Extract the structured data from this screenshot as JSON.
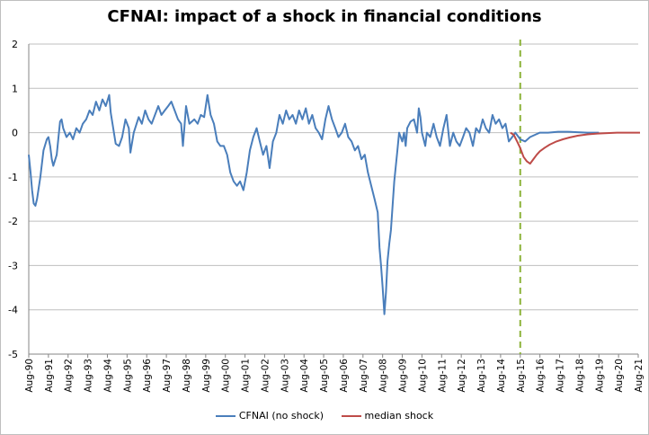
{
  "chart_data": {
    "type": "line",
    "title": "CFNAI: impact of a shock in financial conditions",
    "xlabel": "",
    "ylabel": "",
    "ylim": [
      -5,
      2
    ],
    "yticks": [
      2,
      1,
      0,
      -1,
      -2,
      -3,
      -4,
      -5
    ],
    "xticks": [
      "Aug-90",
      "Aug-91",
      "Aug-92",
      "Aug-93",
      "Aug-94",
      "Aug-95",
      "Aug-96",
      "Aug-97",
      "Aug-98",
      "Aug-99",
      "Aug-00",
      "Aug-01",
      "Aug-02",
      "Aug-03",
      "Aug-04",
      "Aug-05",
      "Aug-06",
      "Aug-07",
      "Aug-08",
      "Aug-09",
      "Aug-10",
      "Aug-11",
      "Aug-12",
      "Aug-13",
      "Aug-14",
      "Aug-15",
      "Aug-16",
      "Aug-17",
      "Aug-18",
      "Aug-19",
      "Aug-20",
      "Aug-21"
    ],
    "grid": "horizontal",
    "legend_position": "bottom",
    "vertical_marker": {
      "x": "Aug-15",
      "style": "dashed",
      "color": "#8db33a"
    },
    "series": [
      {
        "name": "CFNAI (no shock)",
        "color": "#4a7ebb",
        "points": [
          [
            1990.58,
            -0.5
          ],
          [
            1990.67,
            -0.9
          ],
          [
            1990.75,
            -1.3
          ],
          [
            1990.83,
            -1.6
          ],
          [
            1990.92,
            -1.65
          ],
          [
            1991.0,
            -1.5
          ],
          [
            1991.17,
            -1.0
          ],
          [
            1991.33,
            -0.4
          ],
          [
            1991.5,
            -0.15
          ],
          [
            1991.58,
            -0.1
          ],
          [
            1991.67,
            -0.3
          ],
          [
            1991.75,
            -0.6
          ],
          [
            1991.83,
            -0.75
          ],
          [
            1992.0,
            -0.5
          ],
          [
            1992.17,
            0.25
          ],
          [
            1992.25,
            0.3
          ],
          [
            1992.33,
            0.1
          ],
          [
            1992.5,
            -0.1
          ],
          [
            1992.67,
            0.0
          ],
          [
            1992.83,
            -0.15
          ],
          [
            1993.0,
            0.1
          ],
          [
            1993.17,
            0.0
          ],
          [
            1993.33,
            0.2
          ],
          [
            1993.5,
            0.3
          ],
          [
            1993.67,
            0.5
          ],
          [
            1993.83,
            0.4
          ],
          [
            1994.0,
            0.7
          ],
          [
            1994.17,
            0.5
          ],
          [
            1994.33,
            0.75
          ],
          [
            1994.5,
            0.6
          ],
          [
            1994.67,
            0.85
          ],
          [
            1994.75,
            0.45
          ],
          [
            1995.0,
            -0.25
          ],
          [
            1995.17,
            -0.3
          ],
          [
            1995.33,
            -0.1
          ],
          [
            1995.5,
            0.3
          ],
          [
            1995.67,
            0.1
          ],
          [
            1995.75,
            -0.45
          ],
          [
            1995.92,
            0.0
          ],
          [
            1996.17,
            0.35
          ],
          [
            1996.33,
            0.2
          ],
          [
            1996.5,
            0.5
          ],
          [
            1996.67,
            0.3
          ],
          [
            1996.83,
            0.2
          ],
          [
            1997.0,
            0.4
          ],
          [
            1997.17,
            0.6
          ],
          [
            1997.33,
            0.4
          ],
          [
            1997.5,
            0.5
          ],
          [
            1997.67,
            0.6
          ],
          [
            1997.83,
            0.7
          ],
          [
            1998.0,
            0.5
          ],
          [
            1998.17,
            0.3
          ],
          [
            1998.33,
            0.2
          ],
          [
            1998.42,
            -0.3
          ],
          [
            1998.58,
            0.6
          ],
          [
            1998.75,
            0.2
          ],
          [
            1999.0,
            0.3
          ],
          [
            1999.17,
            0.2
          ],
          [
            1999.33,
            0.4
          ],
          [
            1999.5,
            0.35
          ],
          [
            1999.67,
            0.85
          ],
          [
            1999.83,
            0.4
          ],
          [
            2000.0,
            0.2
          ],
          [
            2000.17,
            -0.2
          ],
          [
            2000.33,
            -0.3
          ],
          [
            2000.5,
            -0.3
          ],
          [
            2000.67,
            -0.5
          ],
          [
            2000.83,
            -0.9
          ],
          [
            2001.0,
            -1.1
          ],
          [
            2001.17,
            -1.2
          ],
          [
            2001.33,
            -1.1
          ],
          [
            2001.5,
            -1.3
          ],
          [
            2001.67,
            -0.9
          ],
          [
            2001.83,
            -0.4
          ],
          [
            2002.0,
            -0.1
          ],
          [
            2002.17,
            0.1
          ],
          [
            2002.33,
            -0.2
          ],
          [
            2002.5,
            -0.5
          ],
          [
            2002.67,
            -0.3
          ],
          [
            2002.83,
            -0.8
          ],
          [
            2003.0,
            -0.2
          ],
          [
            2003.17,
            0.0
          ],
          [
            2003.33,
            0.4
          ],
          [
            2003.5,
            0.2
          ],
          [
            2003.67,
            0.5
          ],
          [
            2003.83,
            0.3
          ],
          [
            2004.0,
            0.4
          ],
          [
            2004.17,
            0.2
          ],
          [
            2004.33,
            0.5
          ],
          [
            2004.5,
            0.3
          ],
          [
            2004.67,
            0.55
          ],
          [
            2004.83,
            0.2
          ],
          [
            2005.0,
            0.4
          ],
          [
            2005.17,
            0.1
          ],
          [
            2005.33,
            0.0
          ],
          [
            2005.5,
            -0.15
          ],
          [
            2005.67,
            0.3
          ],
          [
            2005.83,
            0.6
          ],
          [
            2006.0,
            0.3
          ],
          [
            2006.17,
            0.1
          ],
          [
            2006.33,
            -0.1
          ],
          [
            2006.5,
            0.0
          ],
          [
            2006.67,
            0.2
          ],
          [
            2006.83,
            -0.1
          ],
          [
            2007.0,
            -0.2
          ],
          [
            2007.17,
            -0.4
          ],
          [
            2007.33,
            -0.3
          ],
          [
            2007.5,
            -0.6
          ],
          [
            2007.67,
            -0.5
          ],
          [
            2007.83,
            -0.9
          ],
          [
            2008.0,
            -1.2
          ],
          [
            2008.17,
            -1.5
          ],
          [
            2008.33,
            -1.8
          ],
          [
            2008.42,
            -2.6
          ],
          [
            2008.5,
            -3.0
          ],
          [
            2008.58,
            -3.5
          ],
          [
            2008.67,
            -4.1
          ],
          [
            2008.75,
            -3.6
          ],
          [
            2008.83,
            -2.9
          ],
          [
            2008.92,
            -2.5
          ],
          [
            2009.0,
            -2.2
          ],
          [
            2009.17,
            -1.1
          ],
          [
            2009.33,
            -0.4
          ],
          [
            2009.42,
            0.0
          ],
          [
            2009.58,
            -0.2
          ],
          [
            2009.67,
            0.0
          ],
          [
            2009.75,
            -0.3
          ],
          [
            2009.83,
            0.1
          ],
          [
            2010.0,
            0.25
          ],
          [
            2010.17,
            0.3
          ],
          [
            2010.33,
            0.0
          ],
          [
            2010.42,
            0.55
          ],
          [
            2010.5,
            0.35
          ],
          [
            2010.58,
            0.0
          ],
          [
            2010.75,
            -0.3
          ],
          [
            2010.83,
            0.0
          ],
          [
            2011.0,
            -0.1
          ],
          [
            2011.17,
            0.2
          ],
          [
            2011.33,
            -0.1
          ],
          [
            2011.5,
            -0.3
          ],
          [
            2011.67,
            0.1
          ],
          [
            2011.83,
            0.4
          ],
          [
            2012.0,
            -0.3
          ],
          [
            2012.17,
            0.0
          ],
          [
            2012.33,
            -0.2
          ],
          [
            2012.5,
            -0.3
          ],
          [
            2012.67,
            -0.1
          ],
          [
            2012.83,
            0.1
          ],
          [
            2013.0,
            0.0
          ],
          [
            2013.17,
            -0.3
          ],
          [
            2013.33,
            0.1
          ],
          [
            2013.5,
            0.0
          ],
          [
            2013.67,
            0.3
          ],
          [
            2013.83,
            0.1
          ],
          [
            2014.0,
            0.0
          ],
          [
            2014.17,
            0.4
          ],
          [
            2014.33,
            0.2
          ],
          [
            2014.5,
            0.3
          ],
          [
            2014.67,
            0.1
          ],
          [
            2014.83,
            0.2
          ],
          [
            2015.0,
            -0.2
          ],
          [
            2015.17,
            -0.1
          ],
          [
            2015.33,
            0.0
          ],
          [
            2015.58,
            -0.15
          ],
          [
            2015.83,
            -0.2
          ],
          [
            2016.08,
            -0.1
          ],
          [
            2016.33,
            -0.05
          ],
          [
            2016.58,
            0.0
          ],
          [
            2017.0,
            0.0
          ],
          [
            2017.5,
            0.02
          ],
          [
            2018.0,
            0.02
          ],
          [
            2018.5,
            0.01
          ],
          [
            2019.0,
            0.0
          ],
          [
            2019.58,
            0.0
          ]
        ]
      },
      {
        "name": "median shock",
        "color": "#be4b48",
        "points": [
          [
            2015.08,
            0.0
          ],
          [
            2015.25,
            -0.05
          ],
          [
            2015.42,
            -0.2
          ],
          [
            2015.58,
            -0.35
          ],
          [
            2015.75,
            -0.55
          ],
          [
            2015.92,
            -0.65
          ],
          [
            2016.08,
            -0.7
          ],
          [
            2016.25,
            -0.6
          ],
          [
            2016.42,
            -0.5
          ],
          [
            2016.58,
            -0.42
          ],
          [
            2016.83,
            -0.34
          ],
          [
            2017.08,
            -0.27
          ],
          [
            2017.42,
            -0.2
          ],
          [
            2017.75,
            -0.15
          ],
          [
            2018.08,
            -0.11
          ],
          [
            2018.5,
            -0.07
          ],
          [
            2019.0,
            -0.04
          ],
          [
            2019.5,
            -0.02
          ],
          [
            2020.0,
            -0.01
          ],
          [
            2020.5,
            0.0
          ],
          [
            2021.0,
            0.0
          ],
          [
            2021.67,
            0.0
          ]
        ]
      }
    ]
  }
}
